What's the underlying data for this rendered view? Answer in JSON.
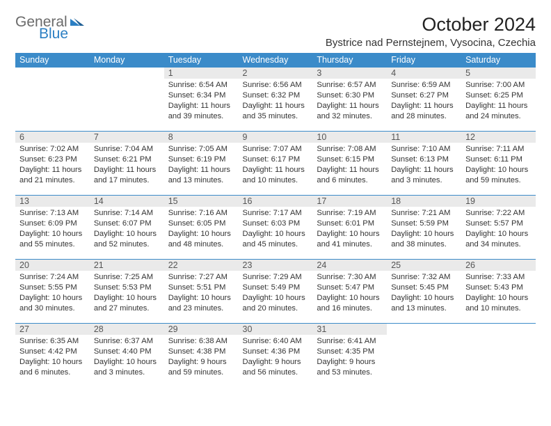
{
  "brand": {
    "word1": "General",
    "word2": "Blue"
  },
  "header": {
    "month_year": "October 2024",
    "location": "Bystrice nad Pernstejnem, Vysocina, Czechia"
  },
  "colors": {
    "header_bg": "#3b8bc9",
    "header_text": "#ffffff",
    "row_rule": "#3b8bc9",
    "daynum_bg": "#eaeaea",
    "logo_gray": "#6a6a6a",
    "logo_blue": "#2b7fc3"
  },
  "day_labels": [
    "Sunday",
    "Monday",
    "Tuesday",
    "Wednesday",
    "Thursday",
    "Friday",
    "Saturday"
  ],
  "weeks": [
    [
      null,
      null,
      {
        "n": "1",
        "sr": "6:54 AM",
        "ss": "6:34 PM",
        "dl": "11 hours and 39 minutes."
      },
      {
        "n": "2",
        "sr": "6:56 AM",
        "ss": "6:32 PM",
        "dl": "11 hours and 35 minutes."
      },
      {
        "n": "3",
        "sr": "6:57 AM",
        "ss": "6:30 PM",
        "dl": "11 hours and 32 minutes."
      },
      {
        "n": "4",
        "sr": "6:59 AM",
        "ss": "6:27 PM",
        "dl": "11 hours and 28 minutes."
      },
      {
        "n": "5",
        "sr": "7:00 AM",
        "ss": "6:25 PM",
        "dl": "11 hours and 24 minutes."
      }
    ],
    [
      {
        "n": "6",
        "sr": "7:02 AM",
        "ss": "6:23 PM",
        "dl": "11 hours and 21 minutes."
      },
      {
        "n": "7",
        "sr": "7:04 AM",
        "ss": "6:21 PM",
        "dl": "11 hours and 17 minutes."
      },
      {
        "n": "8",
        "sr": "7:05 AM",
        "ss": "6:19 PM",
        "dl": "11 hours and 13 minutes."
      },
      {
        "n": "9",
        "sr": "7:07 AM",
        "ss": "6:17 PM",
        "dl": "11 hours and 10 minutes."
      },
      {
        "n": "10",
        "sr": "7:08 AM",
        "ss": "6:15 PM",
        "dl": "11 hours and 6 minutes."
      },
      {
        "n": "11",
        "sr": "7:10 AM",
        "ss": "6:13 PM",
        "dl": "11 hours and 3 minutes."
      },
      {
        "n": "12",
        "sr": "7:11 AM",
        "ss": "6:11 PM",
        "dl": "10 hours and 59 minutes."
      }
    ],
    [
      {
        "n": "13",
        "sr": "7:13 AM",
        "ss": "6:09 PM",
        "dl": "10 hours and 55 minutes."
      },
      {
        "n": "14",
        "sr": "7:14 AM",
        "ss": "6:07 PM",
        "dl": "10 hours and 52 minutes."
      },
      {
        "n": "15",
        "sr": "7:16 AM",
        "ss": "6:05 PM",
        "dl": "10 hours and 48 minutes."
      },
      {
        "n": "16",
        "sr": "7:17 AM",
        "ss": "6:03 PM",
        "dl": "10 hours and 45 minutes."
      },
      {
        "n": "17",
        "sr": "7:19 AM",
        "ss": "6:01 PM",
        "dl": "10 hours and 41 minutes."
      },
      {
        "n": "18",
        "sr": "7:21 AM",
        "ss": "5:59 PM",
        "dl": "10 hours and 38 minutes."
      },
      {
        "n": "19",
        "sr": "7:22 AM",
        "ss": "5:57 PM",
        "dl": "10 hours and 34 minutes."
      }
    ],
    [
      {
        "n": "20",
        "sr": "7:24 AM",
        "ss": "5:55 PM",
        "dl": "10 hours and 30 minutes."
      },
      {
        "n": "21",
        "sr": "7:25 AM",
        "ss": "5:53 PM",
        "dl": "10 hours and 27 minutes."
      },
      {
        "n": "22",
        "sr": "7:27 AM",
        "ss": "5:51 PM",
        "dl": "10 hours and 23 minutes."
      },
      {
        "n": "23",
        "sr": "7:29 AM",
        "ss": "5:49 PM",
        "dl": "10 hours and 20 minutes."
      },
      {
        "n": "24",
        "sr": "7:30 AM",
        "ss": "5:47 PM",
        "dl": "10 hours and 16 minutes."
      },
      {
        "n": "25",
        "sr": "7:32 AM",
        "ss": "5:45 PM",
        "dl": "10 hours and 13 minutes."
      },
      {
        "n": "26",
        "sr": "7:33 AM",
        "ss": "5:43 PM",
        "dl": "10 hours and 10 minutes."
      }
    ],
    [
      {
        "n": "27",
        "sr": "6:35 AM",
        "ss": "4:42 PM",
        "dl": "10 hours and 6 minutes."
      },
      {
        "n": "28",
        "sr": "6:37 AM",
        "ss": "4:40 PM",
        "dl": "10 hours and 3 minutes."
      },
      {
        "n": "29",
        "sr": "6:38 AM",
        "ss": "4:38 PM",
        "dl": "9 hours and 59 minutes."
      },
      {
        "n": "30",
        "sr": "6:40 AM",
        "ss": "4:36 PM",
        "dl": "9 hours and 56 minutes."
      },
      {
        "n": "31",
        "sr": "6:41 AM",
        "ss": "4:35 PM",
        "dl": "9 hours and 53 minutes."
      },
      null,
      null
    ]
  ],
  "labels": {
    "sunrise": "Sunrise:",
    "sunset": "Sunset:",
    "daylight": "Daylight:"
  }
}
